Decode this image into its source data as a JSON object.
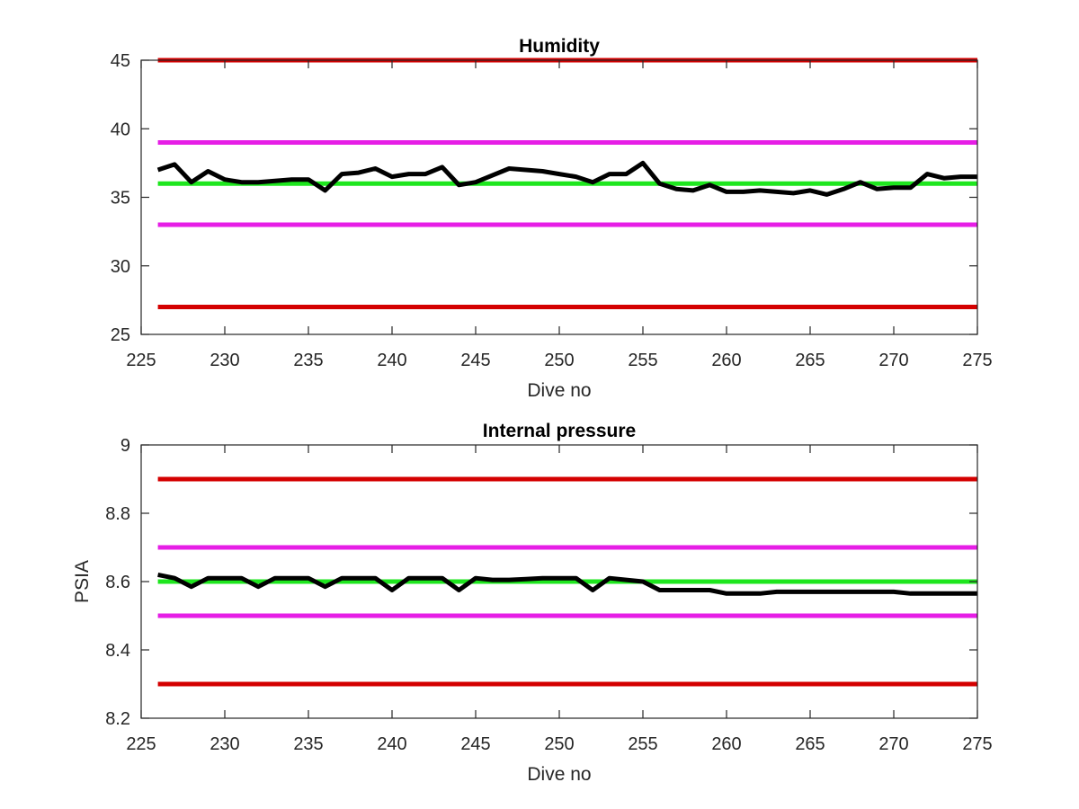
{
  "chart_data": [
    {
      "type": "line",
      "title": "Humidity",
      "xlabel": "Dive no",
      "ylabel": "",
      "xlim": [
        225,
        275
      ],
      "ylim": [
        25,
        45
      ],
      "xticks": [
        "225",
        "230",
        "235",
        "240",
        "245",
        "250",
        "255",
        "260",
        "265",
        "270",
        "275"
      ],
      "yticks": [
        "25",
        "30",
        "35",
        "40",
        "45"
      ],
      "grid": false,
      "limit_lines": [
        {
          "level": "outer",
          "color": "#d40000",
          "values": [
            27,
            45
          ]
        },
        {
          "level": "inner",
          "color": "#e61ee6",
          "values": [
            33,
            39
          ]
        },
        {
          "level": "nominal",
          "color": "#1ee61e",
          "values": [
            36
          ]
        }
      ],
      "series": [
        {
          "color": "#000000",
          "x": [
            226,
            227,
            228,
            229,
            230,
            231,
            232,
            233,
            234,
            235,
            236,
            237,
            238,
            239,
            240,
            241,
            242,
            243,
            244,
            245,
            246,
            247,
            248,
            249,
            250,
            251,
            252,
            253,
            254,
            255,
            256,
            257,
            258,
            259,
            260,
            261,
            262,
            263,
            264,
            265,
            266,
            267,
            268,
            269,
            270,
            271,
            272,
            273,
            274,
            275
          ],
          "y": [
            37.0,
            37.4,
            36.1,
            36.9,
            36.3,
            36.1,
            36.1,
            36.2,
            36.3,
            36.3,
            35.5,
            36.7,
            36.8,
            37.1,
            36.5,
            36.7,
            36.7,
            37.2,
            35.9,
            36.1,
            36.6,
            37.1,
            37.0,
            36.9,
            36.7,
            36.5,
            36.1,
            36.7,
            36.7,
            37.5,
            36.0,
            35.6,
            35.5,
            35.9,
            35.4,
            35.4,
            35.5,
            35.4,
            35.3,
            35.5,
            35.2,
            35.6,
            36.1,
            35.6,
            35.7,
            35.7,
            36.7,
            36.4,
            36.5,
            36.5
          ]
        }
      ]
    },
    {
      "type": "line",
      "title": "Internal pressure",
      "xlabel": "Dive no",
      "ylabel": "PSIA",
      "xlim": [
        225,
        275
      ],
      "ylim": [
        8.2,
        9.0
      ],
      "xticks": [
        "225",
        "230",
        "235",
        "240",
        "245",
        "250",
        "255",
        "260",
        "265",
        "270",
        "275"
      ],
      "yticks": [
        "8.2",
        "8.4",
        "8.6",
        "8.8",
        "9"
      ],
      "grid": false,
      "limit_lines": [
        {
          "level": "outer",
          "color": "#d40000",
          "values": [
            8.3,
            8.9
          ]
        },
        {
          "level": "inner",
          "color": "#e61ee6",
          "values": [
            8.5,
            8.7
          ]
        },
        {
          "level": "nominal",
          "color": "#1ee61e",
          "values": [
            8.6
          ]
        }
      ],
      "series": [
        {
          "color": "#000000",
          "x": [
            226,
            227,
            228,
            229,
            230,
            231,
            232,
            233,
            234,
            235,
            236,
            237,
            238,
            239,
            240,
            241,
            242,
            243,
            244,
            245,
            246,
            247,
            248,
            249,
            250,
            251,
            252,
            253,
            254,
            255,
            256,
            257,
            258,
            259,
            260,
            261,
            262,
            263,
            264,
            265,
            266,
            267,
            268,
            269,
            270,
            271,
            272,
            273,
            274,
            275
          ],
          "y": [
            8.62,
            8.61,
            8.585,
            8.61,
            8.61,
            8.61,
            8.585,
            8.61,
            8.61,
            8.61,
            8.585,
            8.61,
            8.61,
            8.61,
            8.575,
            8.61,
            8.61,
            8.61,
            8.575,
            8.61,
            8.605,
            8.605,
            8.607,
            8.61,
            8.61,
            8.61,
            8.575,
            8.61,
            8.605,
            8.6,
            8.575,
            8.575,
            8.575,
            8.575,
            8.565,
            8.565,
            8.565,
            8.57,
            8.57,
            8.57,
            8.57,
            8.57,
            8.57,
            8.57,
            8.57,
            8.565,
            8.565,
            8.565,
            8.565,
            8.565
          ]
        }
      ]
    }
  ]
}
